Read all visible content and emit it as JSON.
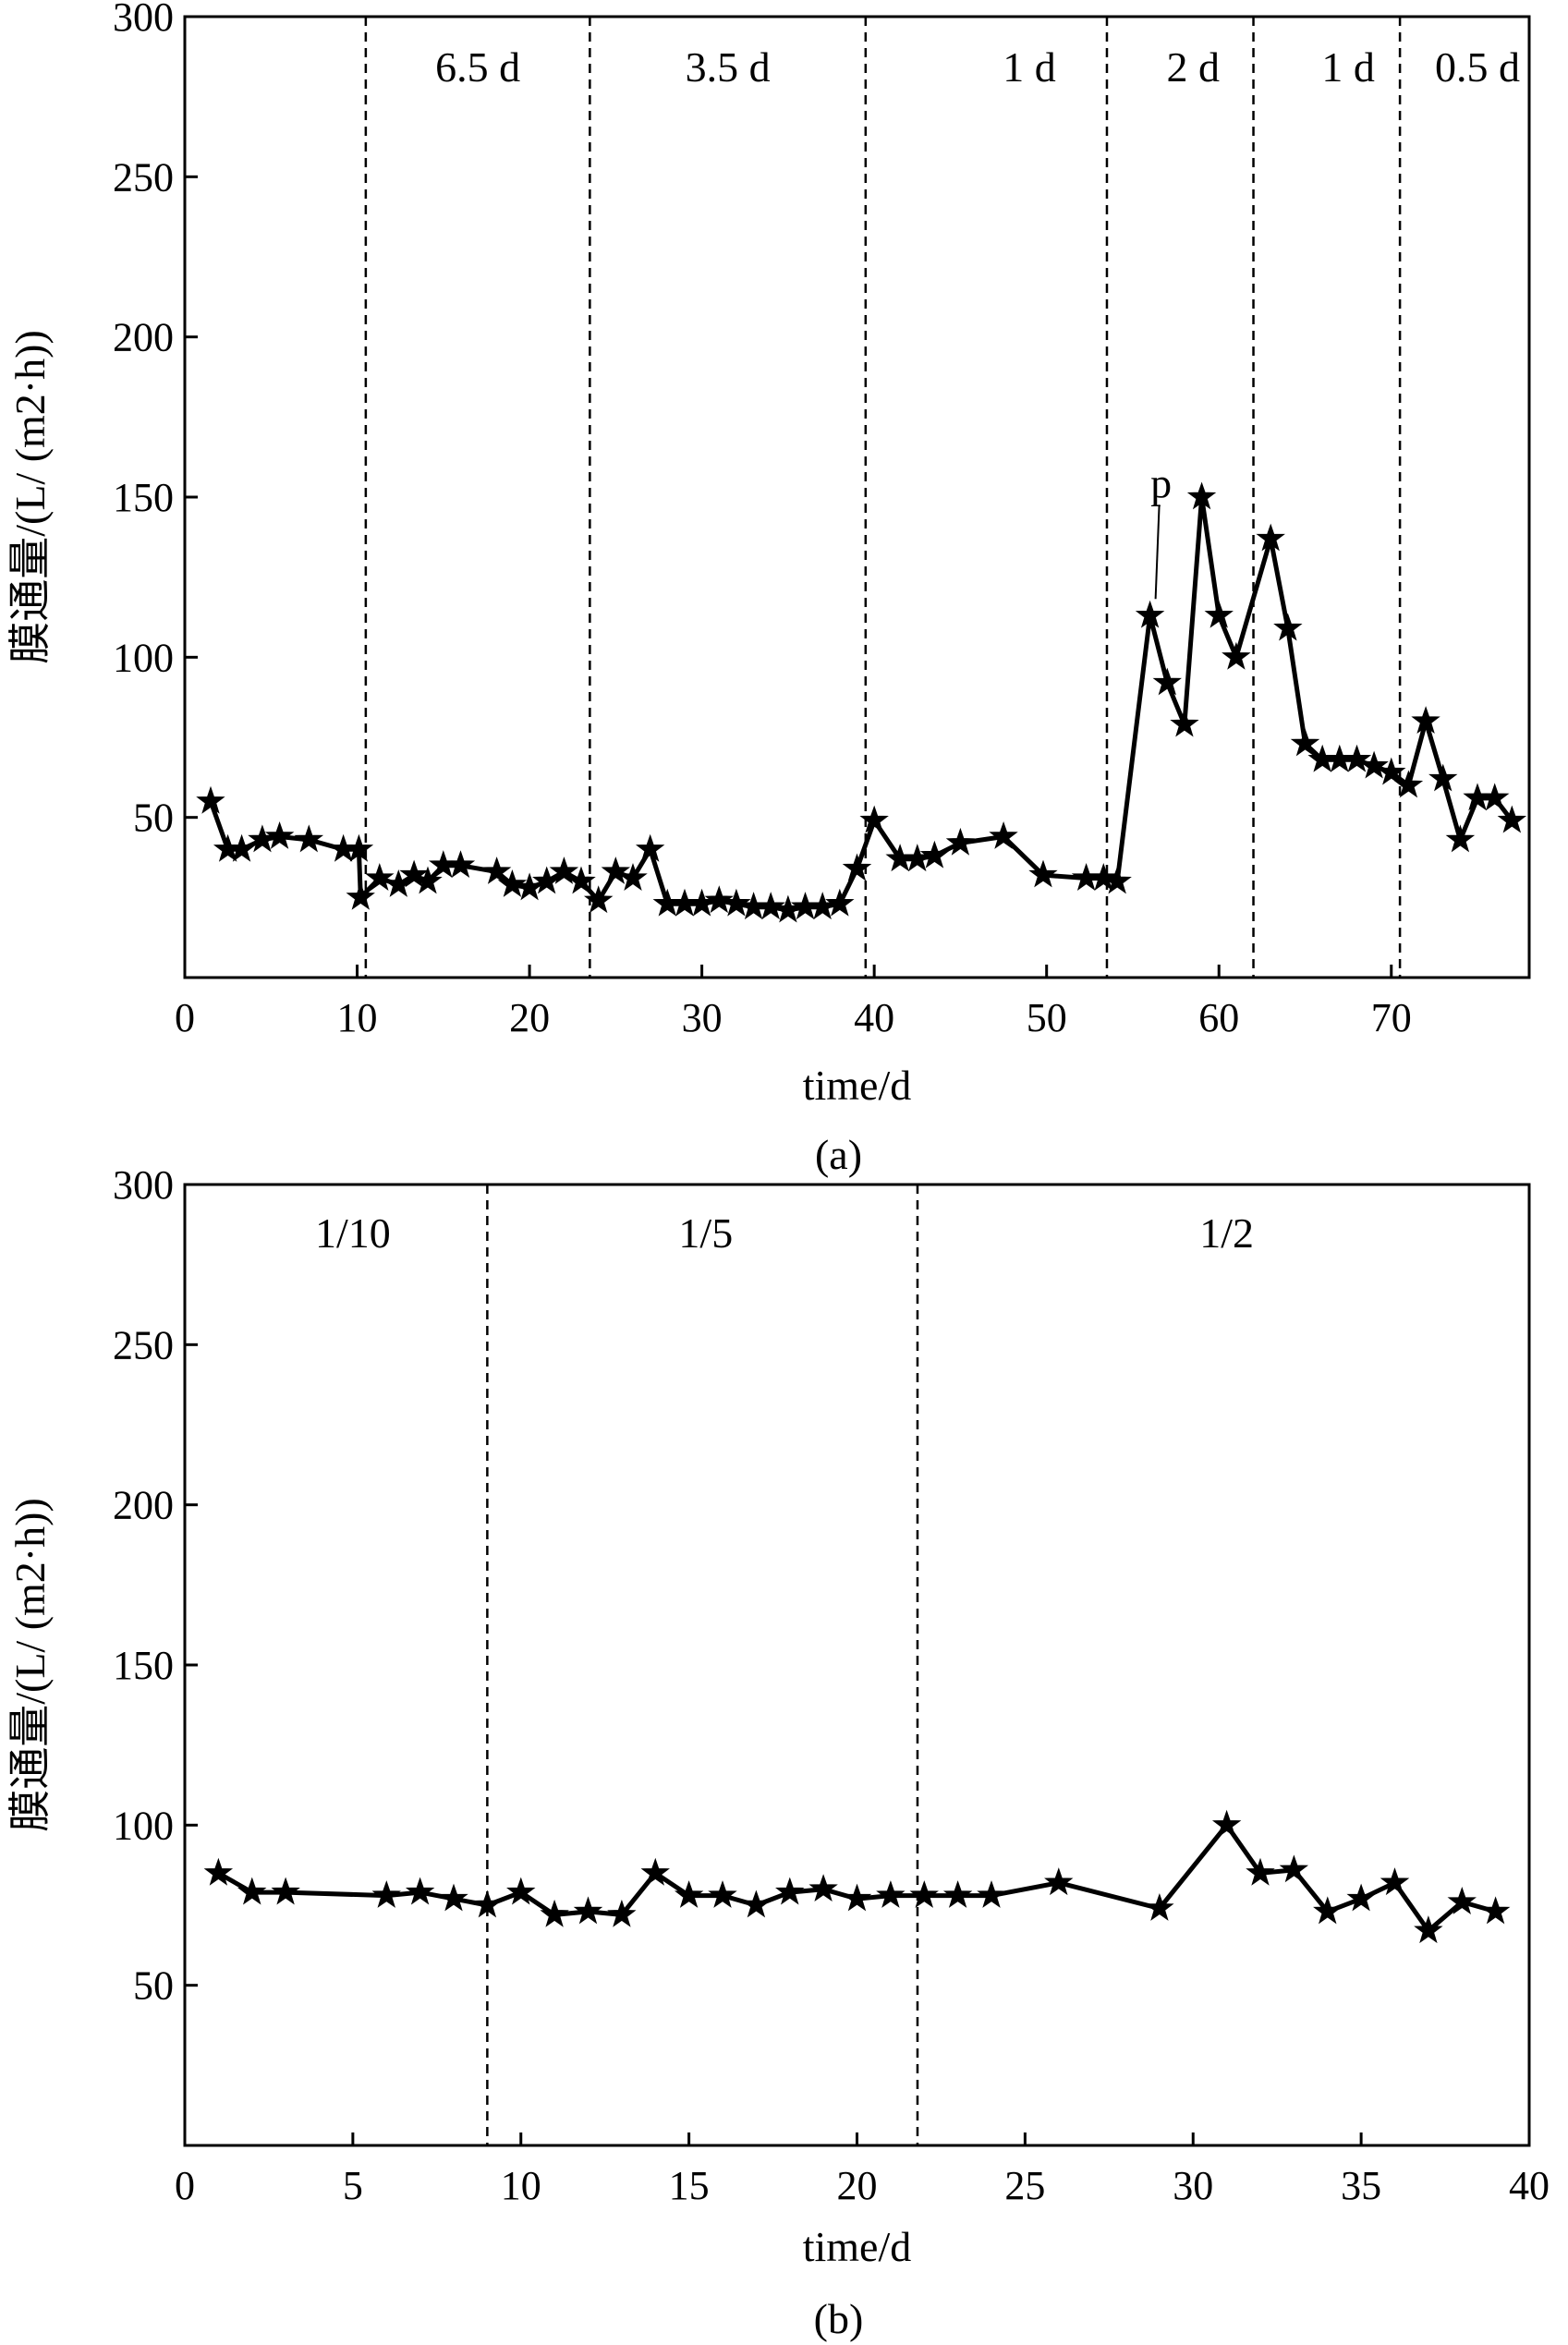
{
  "chart_data": [
    {
      "type": "line",
      "panel_label": "(a)",
      "xlabel": "time/d",
      "ylabel": "膜通量/(L/(m²·h))",
      "ylabel_text": "膜通量/(L/ (m2·h))",
      "xlim": [
        0,
        78
      ],
      "ylim": [
        0,
        300
      ],
      "xticks": [
        0,
        10,
        20,
        30,
        40,
        50,
        60,
        70
      ],
      "yticks": [
        50,
        100,
        150,
        200,
        250,
        300
      ],
      "grid": false,
      "marker": "star",
      "line_color": "#000000",
      "region_dividers": [
        10.5,
        23.5,
        39.5,
        53.5,
        62,
        70.5
      ],
      "region_labels": [
        {
          "text": "6.5 d",
          "x": 17
        },
        {
          "text": "3.5 d",
          "x": 31.5
        },
        {
          "text": "1 d",
          "x": 49
        },
        {
          "text": "2 d",
          "x": 58.5
        },
        {
          "text": "1 d",
          "x": 67.5
        },
        {
          "text": "0.5 d",
          "x": 75
        }
      ],
      "annotations": [
        {
          "text": "p",
          "x": 56,
          "y": 113
        }
      ],
      "series": [
        {
          "x": [
            1.5,
            2.5,
            3.3,
            4.5,
            5.5,
            7.2,
            9.2,
            10.1,
            10.2,
            11.3,
            12.4,
            13.3,
            14.1,
            15,
            16,
            18.1,
            19,
            20,
            21,
            22,
            23,
            24,
            25,
            26,
            27,
            28,
            29,
            30,
            31,
            32,
            33,
            34,
            35,
            36,
            37,
            38,
            39,
            40,
            41.5,
            42.5,
            43.5,
            45,
            47.5,
            49.8,
            52.3,
            53.3,
            54.1,
            56,
            57,
            58,
            59,
            60,
            61,
            63,
            64,
            65,
            66,
            67,
            68,
            69,
            70,
            71,
            72,
            73,
            74,
            75,
            76,
            77
          ],
          "y": [
            55,
            40,
            40,
            43,
            44,
            43,
            40,
            40,
            25,
            31,
            29,
            32,
            30,
            35,
            35,
            33,
            29,
            28,
            30,
            33,
            30,
            24,
            33,
            31,
            40,
            23,
            23,
            23,
            24,
            23,
            22,
            22,
            21,
            22,
            22,
            23,
            34,
            49,
            37,
            37,
            38,
            42,
            44,
            32,
            31,
            31,
            30,
            113,
            92,
            79,
            150,
            113,
            100,
            137,
            109,
            73,
            68,
            68,
            68,
            66,
            64,
            60,
            80,
            62,
            43,
            56,
            56,
            49
          ]
        }
      ]
    },
    {
      "type": "line",
      "panel_label": "(b)",
      "xlabel": "time/d",
      "ylabel": "膜通量/(L/(m²·h))",
      "ylabel_text": "膜通量/(L/ (m2·h))",
      "xlim": [
        0,
        40
      ],
      "ylim": [
        0,
        300
      ],
      "xticks": [
        0,
        5,
        10,
        15,
        20,
        25,
        30,
        35,
        40
      ],
      "yticks": [
        50,
        100,
        150,
        200,
        250,
        300
      ],
      "grid": false,
      "marker": "star",
      "line_color": "#000000",
      "region_dividers": [
        9,
        21.8
      ],
      "region_labels": [
        {
          "text": "1/10",
          "x": 5
        },
        {
          "text": "1/5",
          "x": 15.5
        },
        {
          "text": "1/2",
          "x": 31
        }
      ],
      "annotations": [],
      "series": [
        {
          "x": [
            1,
            2,
            3,
            6,
            7,
            8,
            9,
            10,
            11,
            12,
            13,
            14,
            15,
            16,
            17,
            18,
            19,
            20,
            21,
            22,
            23,
            24,
            26,
            29,
            31,
            32,
            33,
            34,
            35,
            36,
            37,
            38,
            39
          ],
          "y": [
            85,
            79,
            79,
            78,
            79,
            77,
            75,
            79,
            72,
            73,
            72,
            85,
            78,
            78,
            75,
            79,
            80,
            77,
            78,
            78,
            78,
            78,
            82,
            74,
            100,
            85,
            86,
            73,
            77,
            82,
            67,
            76,
            73
          ]
        }
      ]
    }
  ]
}
